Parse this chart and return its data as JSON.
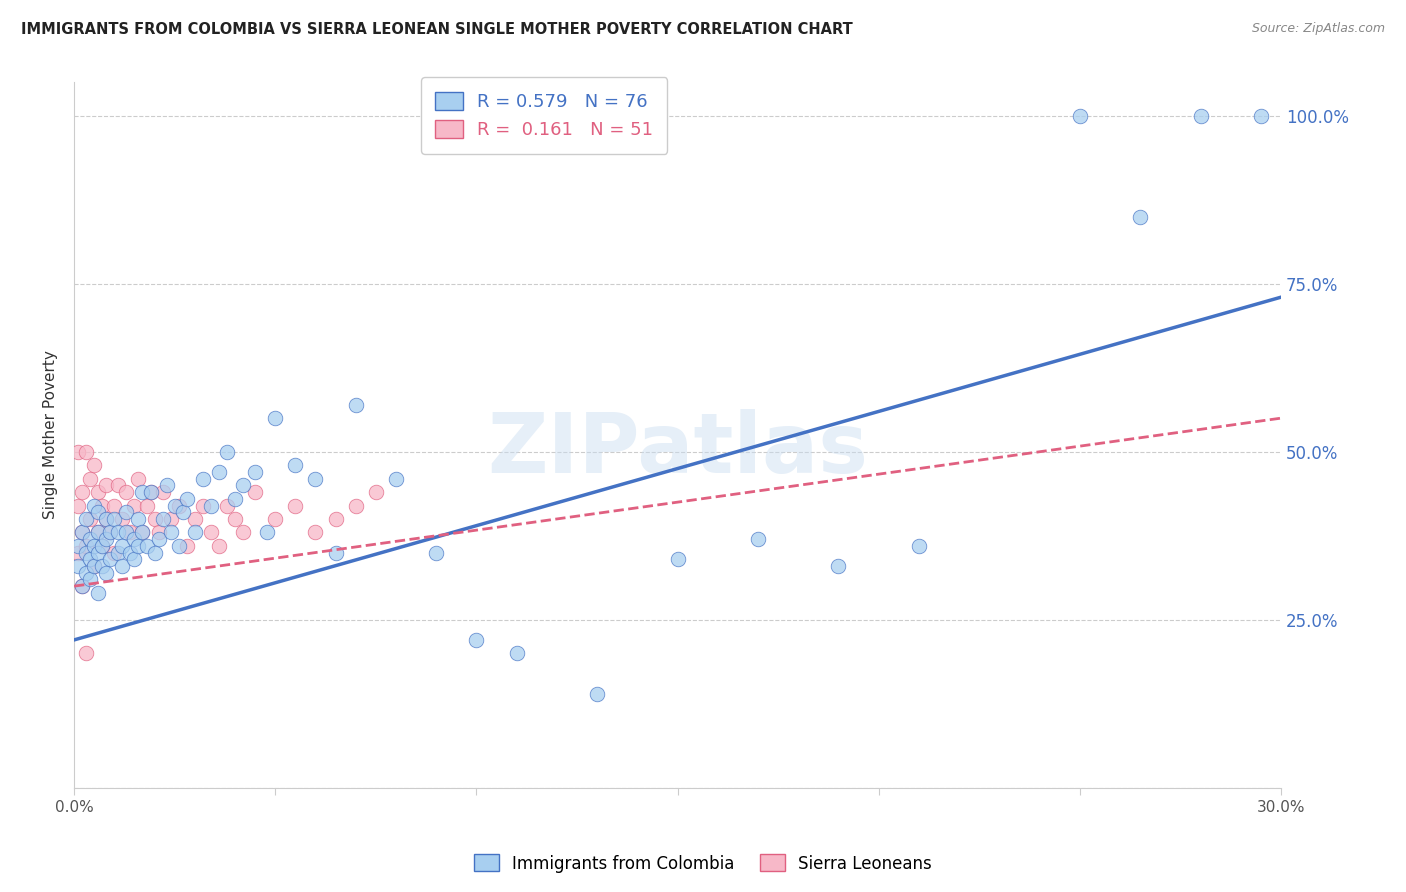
{
  "title": "IMMIGRANTS FROM COLOMBIA VS SIERRA LEONEAN SINGLE MOTHER POVERTY CORRELATION CHART",
  "source": "Source: ZipAtlas.com",
  "ylabel": "Single Mother Poverty",
  "xlim": [
    0.0,
    0.3
  ],
  "ylim": [
    0.0,
    1.05
  ],
  "R_colombia": 0.579,
  "N_colombia": 76,
  "R_sierra": 0.161,
  "N_sierra": 51,
  "color_colombia": "#A8CFF0",
  "color_sierra": "#F7B8C8",
  "color_colombia_line": "#4472C4",
  "color_sierra_line": "#E06080",
  "background_color": "#FFFFFF",
  "grid_color": "#CCCCCC",
  "tick_label_color_right": "#4472C4",
  "watermark_text": "ZIPatlas",
  "colombia_x": [
    0.001,
    0.001,
    0.002,
    0.002,
    0.003,
    0.003,
    0.003,
    0.004,
    0.004,
    0.004,
    0.005,
    0.005,
    0.005,
    0.006,
    0.006,
    0.006,
    0.006,
    0.007,
    0.007,
    0.008,
    0.008,
    0.008,
    0.009,
    0.009,
    0.01,
    0.011,
    0.011,
    0.012,
    0.012,
    0.013,
    0.013,
    0.014,
    0.015,
    0.015,
    0.016,
    0.016,
    0.017,
    0.017,
    0.018,
    0.019,
    0.02,
    0.021,
    0.022,
    0.023,
    0.024,
    0.025,
    0.026,
    0.027,
    0.028,
    0.03,
    0.032,
    0.034,
    0.036,
    0.038,
    0.04,
    0.042,
    0.045,
    0.048,
    0.05,
    0.055,
    0.06,
    0.065,
    0.07,
    0.08,
    0.09,
    0.1,
    0.11,
    0.13,
    0.15,
    0.17,
    0.19,
    0.21,
    0.25,
    0.265,
    0.28,
    0.295
  ],
  "colombia_y": [
    0.33,
    0.36,
    0.3,
    0.38,
    0.32,
    0.35,
    0.4,
    0.34,
    0.37,
    0.31,
    0.33,
    0.36,
    0.42,
    0.35,
    0.38,
    0.41,
    0.29,
    0.36,
    0.33,
    0.37,
    0.32,
    0.4,
    0.38,
    0.34,
    0.4,
    0.35,
    0.38,
    0.36,
    0.33,
    0.38,
    0.41,
    0.35,
    0.37,
    0.34,
    0.36,
    0.4,
    0.38,
    0.44,
    0.36,
    0.44,
    0.35,
    0.37,
    0.4,
    0.45,
    0.38,
    0.42,
    0.36,
    0.41,
    0.43,
    0.38,
    0.46,
    0.42,
    0.47,
    0.5,
    0.43,
    0.45,
    0.47,
    0.38,
    0.55,
    0.48,
    0.46,
    0.35,
    0.57,
    0.46,
    0.35,
    0.22,
    0.2,
    0.14,
    0.34,
    0.37,
    0.33,
    0.36,
    1.0,
    0.85,
    1.0,
    1.0
  ],
  "sierra_x": [
    0.001,
    0.001,
    0.001,
    0.002,
    0.002,
    0.002,
    0.003,
    0.003,
    0.003,
    0.004,
    0.004,
    0.005,
    0.005,
    0.006,
    0.006,
    0.007,
    0.007,
    0.008,
    0.008,
    0.009,
    0.01,
    0.01,
    0.011,
    0.012,
    0.013,
    0.014,
    0.015,
    0.016,
    0.017,
    0.018,
    0.019,
    0.02,
    0.021,
    0.022,
    0.024,
    0.026,
    0.028,
    0.03,
    0.032,
    0.034,
    0.036,
    0.038,
    0.04,
    0.042,
    0.045,
    0.05,
    0.055,
    0.06,
    0.065,
    0.07,
    0.075
  ],
  "sierra_y": [
    0.35,
    0.42,
    0.5,
    0.38,
    0.44,
    0.3,
    0.36,
    0.5,
    0.2,
    0.4,
    0.46,
    0.33,
    0.48,
    0.38,
    0.44,
    0.42,
    0.36,
    0.4,
    0.45,
    0.38,
    0.35,
    0.42,
    0.45,
    0.4,
    0.44,
    0.38,
    0.42,
    0.46,
    0.38,
    0.42,
    0.44,
    0.4,
    0.38,
    0.44,
    0.4,
    0.42,
    0.36,
    0.4,
    0.42,
    0.38,
    0.36,
    0.42,
    0.4,
    0.38,
    0.44,
    0.4,
    0.42,
    0.38,
    0.4,
    0.42,
    0.44
  ]
}
